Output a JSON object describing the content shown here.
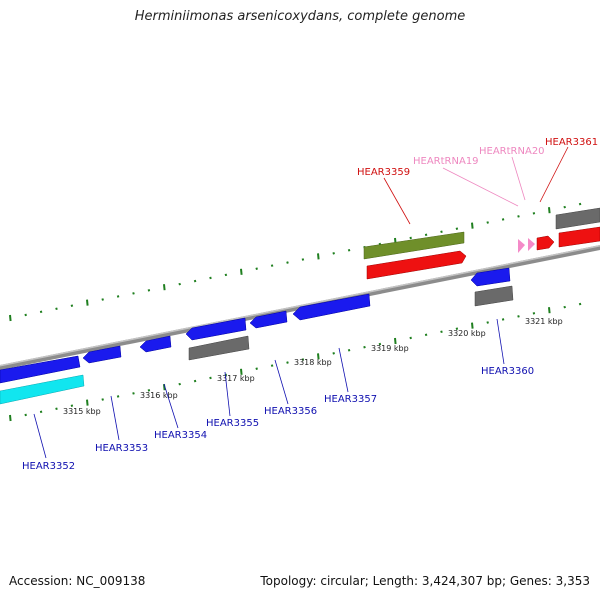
{
  "title": "Herminiimonas arsenicoxydans, complete genome",
  "footer": {
    "accession": "Accession: NC_009138",
    "summary": "Topology: circular; Length: 3,424,307 bp; Genes: 3,353"
  },
  "colors": {
    "blue_gene": "#1a1aee",
    "cyan_gene": "#11e6ef",
    "gray_gene": "#6a6a6a",
    "olive_gene": "#6f8f2a",
    "red_gene": "#ee1111",
    "pink_trna": "#f48ac8",
    "backbone": "#8c8c8c",
    "tick": "#1f7f1f",
    "label_blue": "#1010b0",
    "label_red": "#d01010",
    "label_pink": "#ee88c0"
  },
  "ticks": [
    {
      "label": "3315 kbp"
    },
    {
      "label": "3316 kbp"
    },
    {
      "label": "3317 kbp"
    },
    {
      "label": "3318 kbp"
    },
    {
      "label": "3319 kbp"
    },
    {
      "label": "3320 kbp"
    },
    {
      "label": "3321 kbp"
    }
  ],
  "genes": [
    {
      "name": "HEAR3352"
    },
    {
      "name": "HEAR3353"
    },
    {
      "name": "HEAR3354"
    },
    {
      "name": "HEAR3355"
    },
    {
      "name": "HEAR3356"
    },
    {
      "name": "HEAR3357"
    },
    {
      "name": "HEAR3359"
    },
    {
      "name": "HEARtRNA19"
    },
    {
      "name": "HEARtRNA20"
    },
    {
      "name": "HEAR3360"
    },
    {
      "name": "HEAR3361"
    }
  ]
}
